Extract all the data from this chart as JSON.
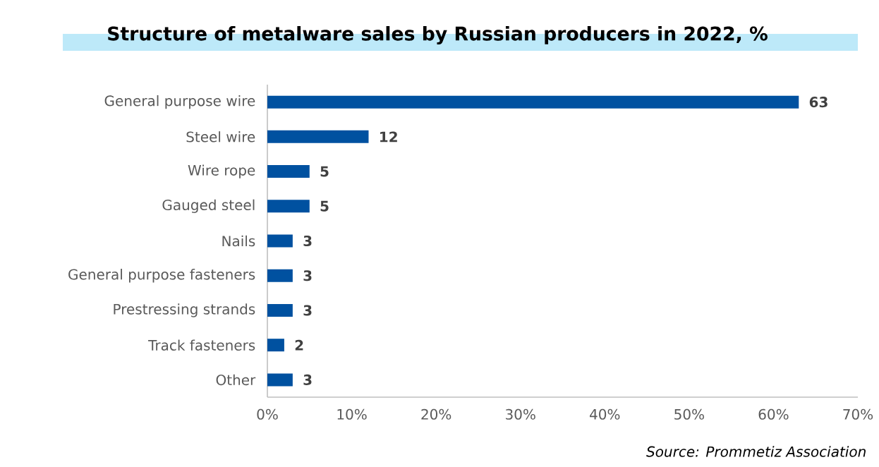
{
  "chart_data": {
    "type": "bar",
    "orientation": "horizontal",
    "title": "Structure of metalware sales by Russian producers in 2022, %",
    "categories": [
      "General purpose wire",
      "Steel wire",
      "Wire rope",
      "Gauged steel",
      "Nails",
      "General purpose fasteners",
      "Prestressing strands",
      "Track fasteners",
      "Other"
    ],
    "values": [
      63,
      12,
      5,
      5,
      3,
      3,
      3,
      2,
      3
    ],
    "color": "#0051a0",
    "data_labels": true,
    "xlim": [
      0,
      70
    ],
    "xticks": [
      {
        "value": 0,
        "label": "0%"
      },
      {
        "value": 10,
        "label": "10%"
      },
      {
        "value": 20,
        "label": "20%"
      },
      {
        "value": 30,
        "label": "30%"
      },
      {
        "value": 40,
        "label": "40%"
      },
      {
        "value": 50,
        "label": "50%"
      },
      {
        "value": 60,
        "label": "60%"
      },
      {
        "value": 70,
        "label": "70%"
      }
    ],
    "grid": false,
    "annotations": [
      "Source: Prommetiz Association"
    ]
  }
}
